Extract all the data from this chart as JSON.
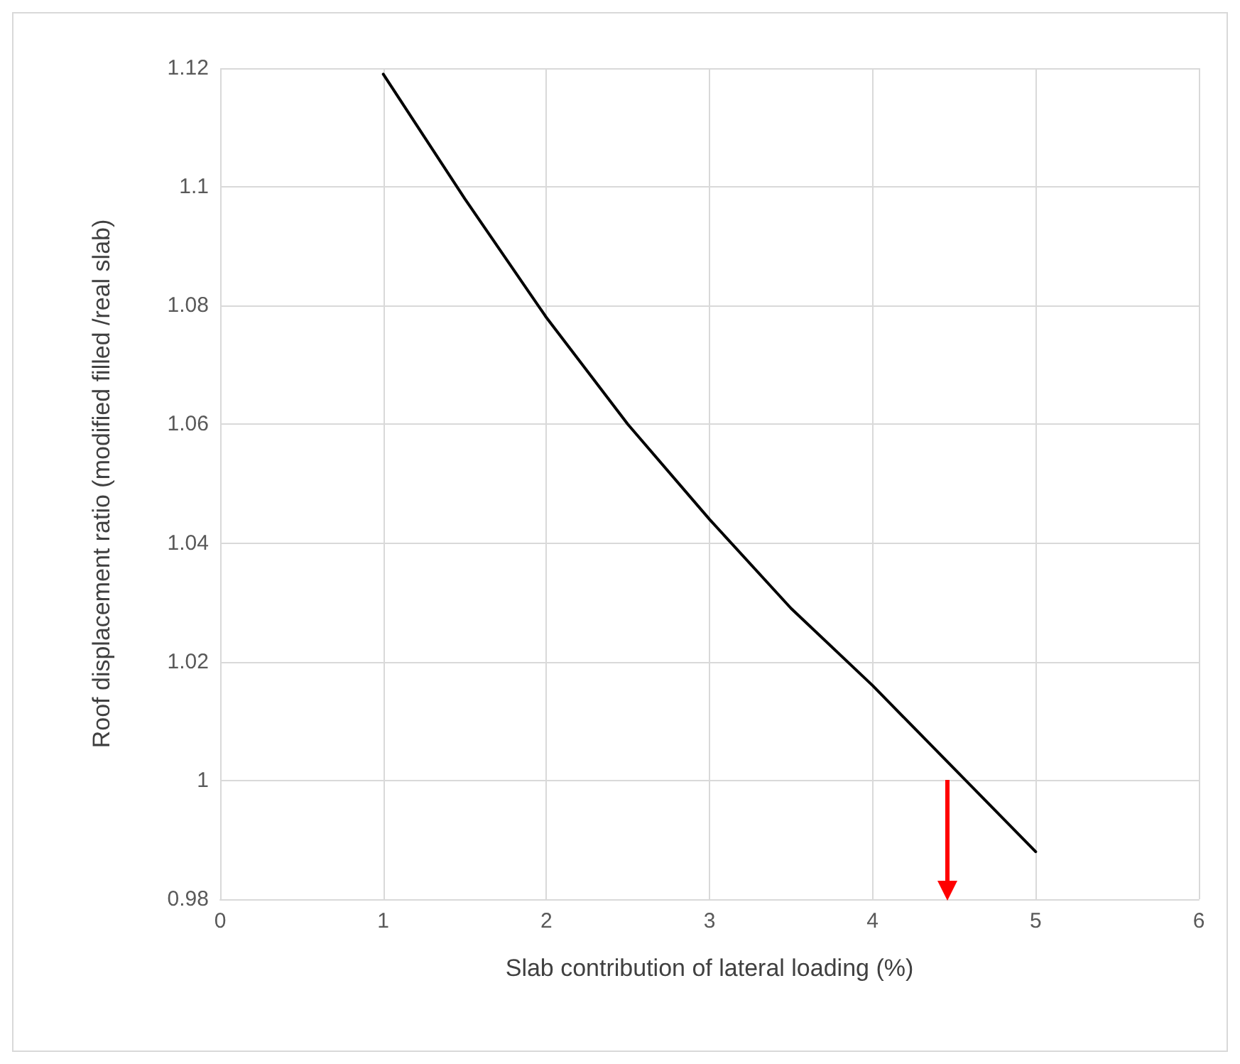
{
  "chart_data": {
    "type": "line",
    "xlabel": "Slab contribution of lateral loading (%)",
    "ylabel": "Roof displacement ratio (modified filled /real slab)",
    "x": [
      1,
      1.5,
      2,
      2.5,
      3,
      3.5,
      4,
      4.5,
      5
    ],
    "series": [
      {
        "color": "#000000",
        "values": [
          1.119,
          1.098,
          1.078,
          1.06,
          1.044,
          1.029,
          1.016,
          1.002,
          0.988
        ]
      }
    ],
    "xlim": [
      0,
      6
    ],
    "xticks": [
      0,
      1,
      2,
      3,
      4,
      5,
      6
    ],
    "ylim": [
      0.98,
      1.12
    ],
    "yticks": [
      0.98,
      1,
      1.02,
      1.04,
      1.06,
      1.08,
      1.1,
      1.12
    ],
    "grid": true,
    "marker": "none",
    "line_style": "solid"
  }
}
